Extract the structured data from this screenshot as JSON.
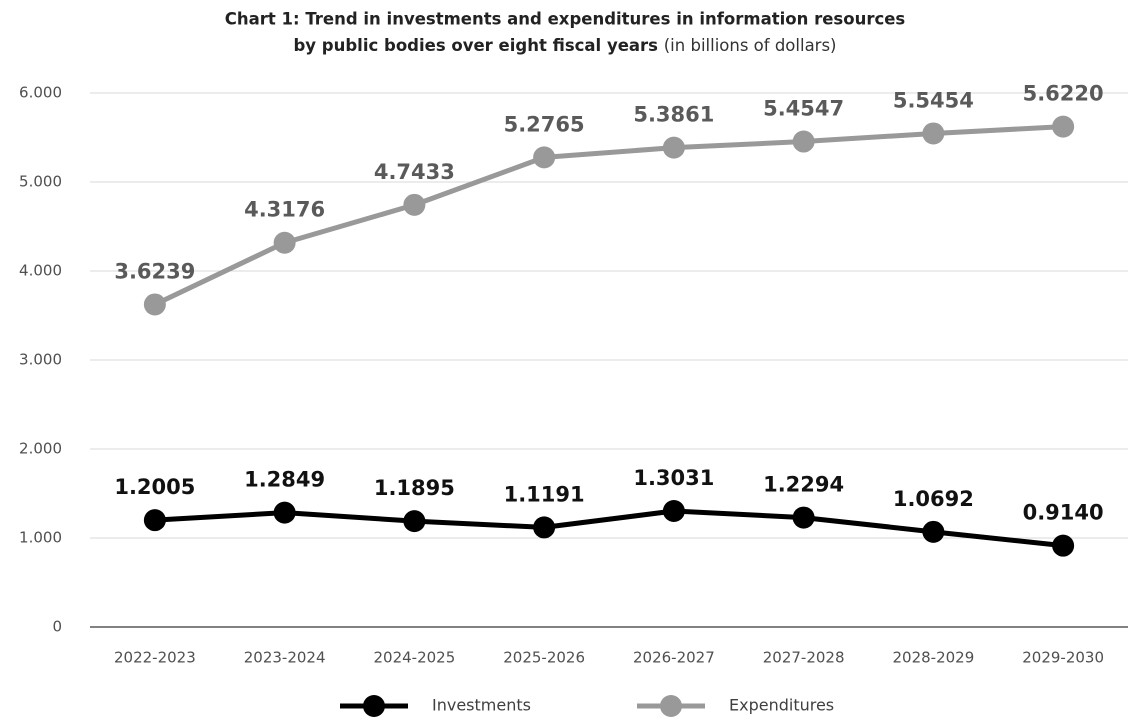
{
  "chart_data": {
    "type": "line",
    "title_lines": [
      "Chart 1: Trend in investments and expenditures in information resources",
      "by public bodies over eight fiscal years"
    ],
    "unit_note": "(in billions of dollars)",
    "categories": [
      "2022-2023",
      "2023-2024",
      "2024-2025",
      "2025-2026",
      "2026-2027",
      "2027-2028",
      "2028-2029",
      "2029-2030"
    ],
    "series": [
      {
        "name": "Investments",
        "color": "#000000",
        "label_color": "#111111",
        "values": [
          1.2005,
          1.2849,
          1.1895,
          1.1191,
          1.3031,
          1.2294,
          1.0692,
          0.914
        ],
        "value_labels": [
          "1.2005",
          "1.2849",
          "1.1895",
          "1.1191",
          "1.3031",
          "1.2294",
          "1.0692",
          "0.9140"
        ]
      },
      {
        "name": "Expenditures",
        "color": "#999999",
        "label_color": "#5a5a5a",
        "values": [
          3.6239,
          4.3176,
          4.7433,
          5.2765,
          5.3861,
          5.4547,
          5.5454,
          5.622
        ],
        "value_labels": [
          "3.6239",
          "4.3176",
          "4.7433",
          "5.2765",
          "5.3861",
          "5.4547",
          "5.5454",
          "5.6220"
        ]
      }
    ],
    "ylim": [
      0,
      6
    ],
    "yticks": [
      0,
      {
        "value": 1,
        "label": "1.000"
      },
      {
        "value": 2,
        "label": "2.000"
      },
      {
        "value": 3,
        "label": "3.000"
      },
      {
        "value": 4,
        "label": "4.000"
      },
      {
        "value": 5,
        "label": "5.000"
      },
      {
        "value": 6,
        "label": "6.000"
      }
    ],
    "grid": true,
    "legend": "bottom"
  }
}
